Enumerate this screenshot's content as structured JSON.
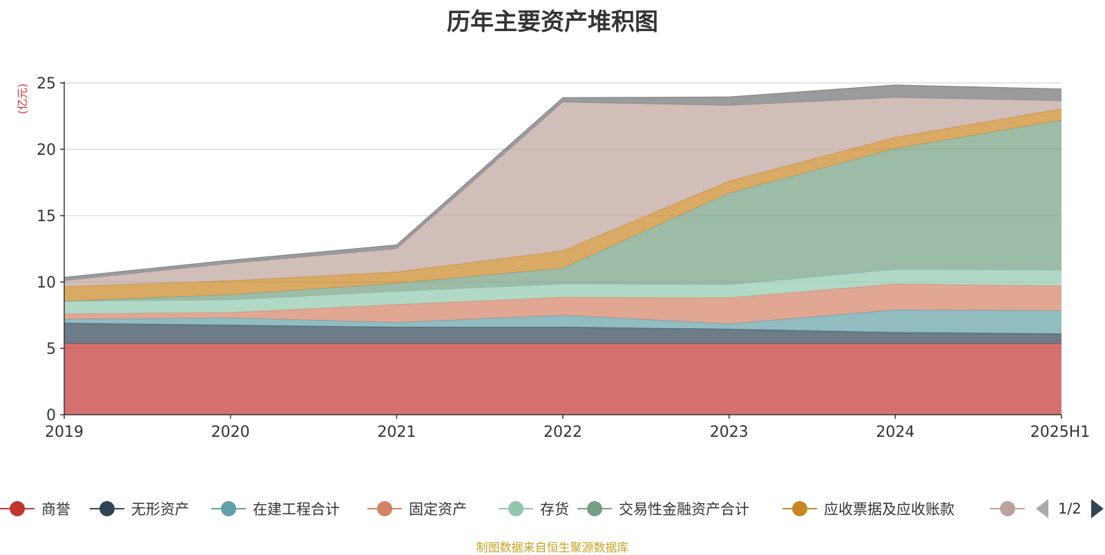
{
  "chart_data": {
    "type": "area",
    "stacked": true,
    "title": "历年主要资产堆积图",
    "ylabel": "(亿元)",
    "ylim": [
      0,
      25
    ],
    "yticks": [
      0,
      5,
      10,
      15,
      20,
      25
    ],
    "categories": [
      "2019",
      "2020",
      "2021",
      "2022",
      "2023",
      "2024",
      "2025H1"
    ],
    "grid": true,
    "series": [
      {
        "name": "商誉",
        "color": "#c23531",
        "values": [
          5.35,
          5.35,
          5.35,
          5.35,
          5.35,
          5.35,
          5.35
        ]
      },
      {
        "name": "无形资产",
        "color": "#2f4554",
        "values": [
          1.55,
          1.4,
          1.25,
          1.25,
          1.1,
          0.85,
          0.75
        ]
      },
      {
        "name": "在建工程合计",
        "color": "#61a0a8",
        "values": [
          0.3,
          0.55,
          0.35,
          0.9,
          0.4,
          1.7,
          1.75
        ]
      },
      {
        "name": "固定资产",
        "color": "#d48265",
        "values": [
          0.4,
          0.4,
          1.35,
          1.35,
          1.95,
          1.95,
          1.85
        ]
      },
      {
        "name": "存货",
        "color": "#91c7ae",
        "values": [
          0.95,
          0.95,
          1.0,
          1.0,
          1.0,
          1.1,
          1.2
        ]
      },
      {
        "name": "交易性金融资产合计",
        "color": "#749f83",
        "values": [
          0.0,
          0.4,
          0.6,
          1.2,
          6.9,
          9.1,
          11.3
        ]
      },
      {
        "name": "应收票据及应收账款",
        "color": "#ca8622",
        "values": [
          1.1,
          1.05,
          0.85,
          1.3,
          0.9,
          0.85,
          0.85
        ]
      },
      {
        "name": "",
        "color": "#bda29a",
        "values": [
          0.45,
          1.3,
          1.75,
          11.2,
          5.7,
          3.0,
          0.6
        ]
      },
      {
        "name": "",
        "color": "#6e7074",
        "values": [
          0.25,
          0.25,
          0.3,
          0.35,
          0.65,
          0.95,
          0.9
        ]
      }
    ]
  },
  "legend": {
    "items": [
      "商誉",
      "无形资产",
      "在建工程合计",
      "固定资产",
      "存货",
      "交易性金融资产合计",
      "应收票据及应收账款",
      ""
    ],
    "pager": "1/2"
  },
  "source_note": "制图数据来自恒生聚源数据库"
}
